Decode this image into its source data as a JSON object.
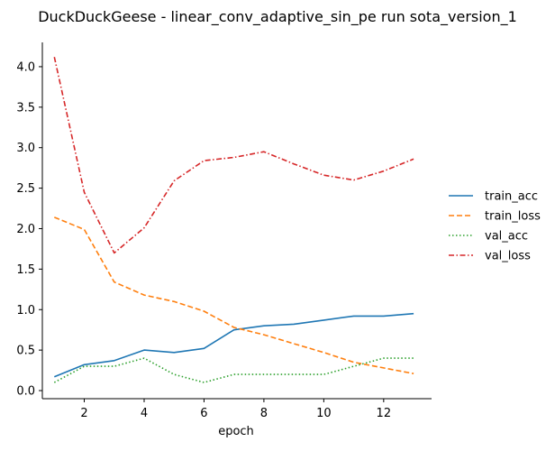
{
  "chart_data": {
    "type": "line",
    "title": "DuckDuckGeese - linear_conv_adaptive_sin_pe run sota_version_1",
    "xlabel": "epoch",
    "ylabel": "",
    "x": [
      1,
      2,
      3,
      4,
      5,
      6,
      7,
      8,
      9,
      10,
      11,
      12,
      13
    ],
    "xlim": [
      0.6,
      13.6
    ],
    "ylim": [
      -0.1,
      4.3
    ],
    "xticks": [
      2,
      4,
      6,
      8,
      10,
      12
    ],
    "yticks": [
      0.0,
      0.5,
      1.0,
      1.5,
      2.0,
      2.5,
      3.0,
      3.5,
      4.0
    ],
    "xtick_labels": [
      "2",
      "4",
      "6",
      "8",
      "10",
      "12"
    ],
    "ytick_labels": [
      "0.0",
      "0.5",
      "1.0",
      "1.5",
      "2.0",
      "2.5",
      "3.0",
      "3.5",
      "4.0"
    ],
    "grid": false,
    "legend_position": "right",
    "series": [
      {
        "name": "train_acc",
        "color": "#1f77b4",
        "dash": "solid",
        "values": [
          0.17,
          0.32,
          0.37,
          0.5,
          0.47,
          0.52,
          0.75,
          0.8,
          0.82,
          0.87,
          0.92,
          0.92,
          0.95
        ]
      },
      {
        "name": "train_loss",
        "color": "#ff7f0e",
        "dash": "dashed",
        "values": [
          2.14,
          1.99,
          1.34,
          1.18,
          1.1,
          0.98,
          0.78,
          0.69,
          0.58,
          0.47,
          0.35,
          0.28,
          0.21
        ]
      },
      {
        "name": "val_acc",
        "color": "#2ca02c",
        "dash": "dotted",
        "values": [
          0.1,
          0.3,
          0.3,
          0.4,
          0.2,
          0.1,
          0.2,
          0.2,
          0.2,
          0.2,
          0.3,
          0.4,
          0.4
        ]
      },
      {
        "name": "val_loss",
        "color": "#d62728",
        "dash": "dashdot",
        "values": [
          4.12,
          2.45,
          1.7,
          2.01,
          2.59,
          2.84,
          2.88,
          2.95,
          2.8,
          2.66,
          2.6,
          2.71,
          2.86
        ]
      }
    ]
  }
}
